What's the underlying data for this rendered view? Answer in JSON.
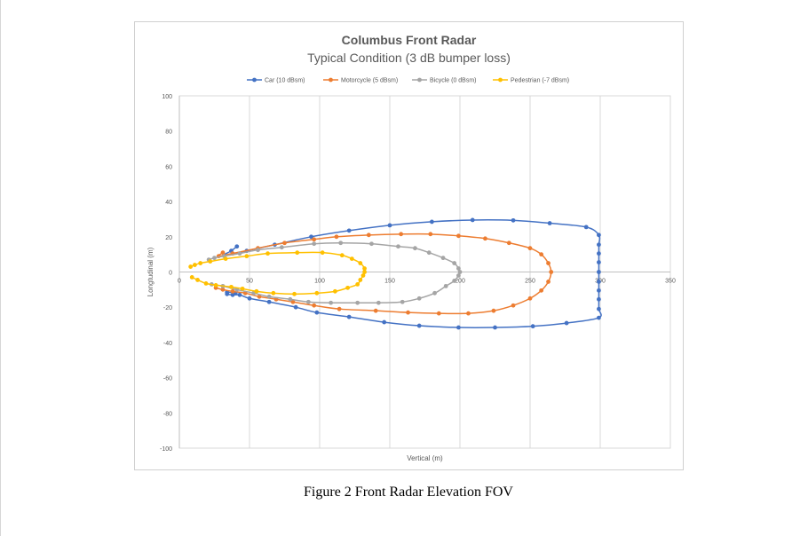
{
  "caption": "Figure 2 Front Radar Elevation FOV",
  "chart_data": {
    "type": "scatter",
    "title": "Columbus Front Radar",
    "subtitle": "Typical Condition (3 dB bumper loss)",
    "xlabel": "Vertical  (m)",
    "ylabel": "Longtudinal (m)",
    "xlim": [
      0,
      350
    ],
    "ylim": [
      -100,
      100
    ],
    "xticks": [
      0,
      50,
      100,
      150,
      200,
      250,
      300,
      350
    ],
    "yticks": [
      -100,
      -80,
      -60,
      -40,
      -20,
      0,
      20,
      40,
      60,
      80,
      100
    ],
    "grid": "vertical",
    "legend": "top",
    "lines_smooth": true,
    "series": [
      {
        "name": "Car (10 dBsm)",
        "color": "#4472c4",
        "points": [
          [
            41,
            14.5
          ],
          [
            37,
            12
          ],
          [
            32,
            9.5
          ],
          [
            48,
            12
          ],
          [
            68,
            15.5
          ],
          [
            94,
            20
          ],
          [
            121,
            23.5
          ],
          [
            150,
            26.5
          ],
          [
            180,
            28.5
          ],
          [
            209,
            29.5
          ],
          [
            238,
            29.3
          ],
          [
            264,
            27.7
          ],
          [
            290,
            25.5
          ],
          [
            299,
            21
          ],
          [
            299,
            15.5
          ],
          [
            299,
            10.5
          ],
          [
            299,
            5.5
          ],
          [
            299,
            0
          ],
          [
            299,
            -5.5
          ],
          [
            299,
            -10.5
          ],
          [
            299,
            -15.5
          ],
          [
            299,
            -21
          ],
          [
            299,
            -26
          ],
          [
            276,
            -29
          ],
          [
            252,
            -30.8
          ],
          [
            225,
            -31.5
          ],
          [
            199,
            -31.5
          ],
          [
            171,
            -30.5
          ],
          [
            146,
            -28.5
          ],
          [
            121,
            -25.5
          ],
          [
            98,
            -23
          ],
          [
            83,
            -20
          ],
          [
            64,
            -17
          ],
          [
            50,
            -15
          ],
          [
            43,
            -13
          ],
          [
            38,
            -13
          ],
          [
            34,
            -12.5
          ],
          [
            34,
            -11.5
          ],
          [
            40,
            -12
          ]
        ]
      },
      {
        "name": "Motorcycle (5 dBsm)",
        "color": "#ed7d31",
        "points": [
          [
            31,
            11
          ],
          [
            28,
            9
          ],
          [
            38,
            10.5
          ],
          [
            56,
            13.5
          ],
          [
            75,
            16.5
          ],
          [
            96,
            18.5
          ],
          [
            112,
            20
          ],
          [
            135,
            21
          ],
          [
            158,
            21.5
          ],
          [
            179,
            21.5
          ],
          [
            199,
            20.5
          ],
          [
            218,
            19
          ],
          [
            235,
            16.5
          ],
          [
            250,
            13.5
          ],
          [
            258,
            10
          ],
          [
            263,
            5
          ],
          [
            265,
            0
          ],
          [
            263,
            -5.5
          ],
          [
            258,
            -10.5
          ],
          [
            250,
            -15
          ],
          [
            238,
            -19
          ],
          [
            224,
            -22
          ],
          [
            206,
            -23.5
          ],
          [
            185,
            -23.5
          ],
          [
            163,
            -23
          ],
          [
            140,
            -22
          ],
          [
            114,
            -21
          ],
          [
            96,
            -19
          ],
          [
            81,
            -17
          ],
          [
            69,
            -15.5
          ],
          [
            57,
            -14
          ],
          [
            47,
            -12
          ],
          [
            38,
            -11
          ],
          [
            31,
            -10
          ],
          [
            26,
            -9
          ]
        ]
      },
      {
        "name": "Bicycle (0 dBsm)",
        "color": "#a5a5a5",
        "points": [
          [
            21,
            7
          ],
          [
            25,
            8
          ],
          [
            32,
            9
          ],
          [
            43,
            10.5
          ],
          [
            56,
            12.5
          ],
          [
            73,
            14
          ],
          [
            96,
            16
          ],
          [
            115,
            16.5
          ],
          [
            137,
            16
          ],
          [
            156,
            14.5
          ],
          [
            168,
            13.5
          ],
          [
            178,
            11
          ],
          [
            188,
            8
          ],
          [
            196,
            5
          ],
          [
            199,
            2
          ],
          [
            200,
            0
          ],
          [
            199,
            -2
          ],
          [
            196,
            -5
          ],
          [
            190,
            -8
          ],
          [
            182,
            -12
          ],
          [
            171,
            -15
          ],
          [
            159,
            -17
          ],
          [
            142,
            -17.5
          ],
          [
            127,
            -17.5
          ],
          [
            108,
            -17.5
          ],
          [
            92,
            -17
          ],
          [
            79,
            -15.5
          ],
          [
            64,
            -14
          ],
          [
            53,
            -12
          ],
          [
            41,
            -10
          ],
          [
            31,
            -8
          ],
          [
            23,
            -7
          ]
        ]
      },
      {
        "name": "Pedestrian (-7 dBsm)",
        "color": "#ffc000",
        "points": [
          [
            8,
            3
          ],
          [
            11,
            4
          ],
          [
            15,
            5
          ],
          [
            22,
            6
          ],
          [
            33,
            7.5
          ],
          [
            48,
            9
          ],
          [
            63,
            10.5
          ],
          [
            84,
            11
          ],
          [
            102,
            11
          ],
          [
            116,
            9.5
          ],
          [
            123,
            7.5
          ],
          [
            129,
            5
          ],
          [
            132,
            2
          ],
          [
            132,
            0
          ],
          [
            131,
            -2
          ],
          [
            129,
            -4.5
          ],
          [
            127,
            -7
          ],
          [
            120,
            -9
          ],
          [
            111,
            -11
          ],
          [
            98,
            -12
          ],
          [
            82,
            -12.5
          ],
          [
            67,
            -12
          ],
          [
            55,
            -11
          ],
          [
            45,
            -9.5
          ],
          [
            37,
            -8.5
          ],
          [
            26,
            -7.5
          ],
          [
            19,
            -6.5
          ],
          [
            13,
            -4.5
          ],
          [
            9,
            -3
          ]
        ]
      }
    ]
  }
}
